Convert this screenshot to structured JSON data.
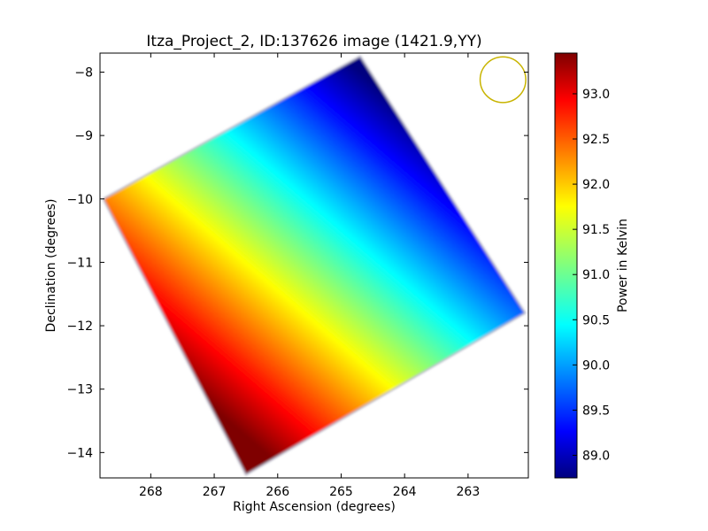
{
  "chart_data": {
    "type": "heatmap",
    "title": "Itza_Project_2, ID:137626 image (1421.9,YY)",
    "xlabel": "Right Ascension (degrees)",
    "ylabel": "Declination (degrees)",
    "xlim": [
      268.8,
      262.05
    ],
    "ylim": [
      -14.4,
      -7.7
    ],
    "xticks": [
      268,
      267,
      266,
      265,
      264,
      263
    ],
    "yticks": [
      -8,
      -9,
      -10,
      -11,
      -12,
      -13,
      -14
    ],
    "map_corners": [
      {
        "ra": 264.7,
        "dec": -7.75
      },
      {
        "ra": 262.1,
        "dec": -11.8
      },
      {
        "ra": 266.5,
        "dec": -14.35
      },
      {
        "ra": 268.75,
        "dec": -10.0
      }
    ],
    "gradient": [
      {
        "ra": 264.0,
        "dec": -8.6,
        "value": 89.0
      },
      {
        "ra": 267.6,
        "dec": -12.8,
        "value": 93.2
      }
    ],
    "beam_marker": {
      "ra": 262.45,
      "dec": -8.12,
      "radius_deg": 0.36,
      "color": "#c8b400"
    },
    "colorbar": {
      "label": "Power in Kelvin",
      "range": [
        88.75,
        93.45
      ],
      "ticks": [
        "89.0",
        "89.5",
        "90.0",
        "90.5",
        "91.0",
        "91.5",
        "92.0",
        "92.5",
        "93.0"
      ],
      "colormap": "jet"
    }
  }
}
